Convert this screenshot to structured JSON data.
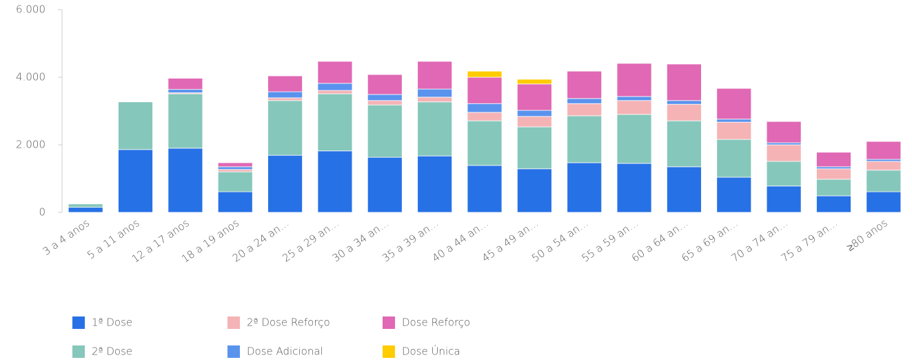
{
  "chart_data": {
    "type": "stacked_bar",
    "categories": [
      "3 a 4 anos",
      "5 a 11 anos",
      "12 a 17 anos",
      "18 a 19 anos",
      "20 a 24 an…",
      "25 a 29 an…",
      "30 a 34 an…",
      "35 a 39 an…",
      "40 a 44 an…",
      "45 a 49 an…",
      "50 a 54 an…",
      "55 a 59 an…",
      "60 a 64 an…",
      "65 a 69 an…",
      "70 a 74 an…",
      "75 a 79 an…",
      "≥80 anos"
    ],
    "series": [
      {
        "name": "1ª Dose",
        "color": "#2771e6",
        "values": [
          150,
          1860,
          1900,
          610,
          1690,
          1820,
          1630,
          1670,
          1390,
          1290,
          1470,
          1450,
          1350,
          1040,
          780,
          490,
          610
        ]
      },
      {
        "name": "2ª Dose",
        "color": "#86c7bb",
        "values": [
          100,
          1410,
          1610,
          590,
          1620,
          1690,
          1550,
          1600,
          1320,
          1240,
          1390,
          1450,
          1360,
          1120,
          730,
          490,
          640
        ]
      },
      {
        "name": "2ª Dose Reforço",
        "color": "#f5b3b5",
        "values": [
          0,
          0,
          30,
          70,
          80,
          100,
          130,
          140,
          250,
          310,
          360,
          410,
          490,
          510,
          490,
          310,
          260
        ]
      },
      {
        "name": "Dose Adicional",
        "color": "#5a93ee",
        "values": [
          0,
          0,
          100,
          80,
          180,
          210,
          180,
          240,
          260,
          180,
          150,
          120,
          110,
          90,
          60,
          60,
          60
        ]
      },
      {
        "name": "Dose Reforço",
        "color": "#e068b4",
        "values": [
          0,
          0,
          330,
          120,
          470,
          650,
          590,
          820,
          780,
          780,
          810,
          980,
          1080,
          910,
          630,
          430,
          530
        ]
      },
      {
        "name": "Dose Única",
        "color": "#ffcc00",
        "values": [
          0,
          0,
          0,
          0,
          0,
          0,
          0,
          0,
          180,
          140,
          0,
          0,
          0,
          0,
          0,
          0,
          0
        ]
      }
    ],
    "ylim": [
      0,
      6000
    ],
    "yticks": [
      {
        "value": 0,
        "label": "0"
      },
      {
        "value": 2000,
        "label": "2.000"
      },
      {
        "value": 4000,
        "label": "4.000"
      },
      {
        "value": 6000,
        "label": "6.000"
      }
    ],
    "legend": "bottom-left"
  }
}
